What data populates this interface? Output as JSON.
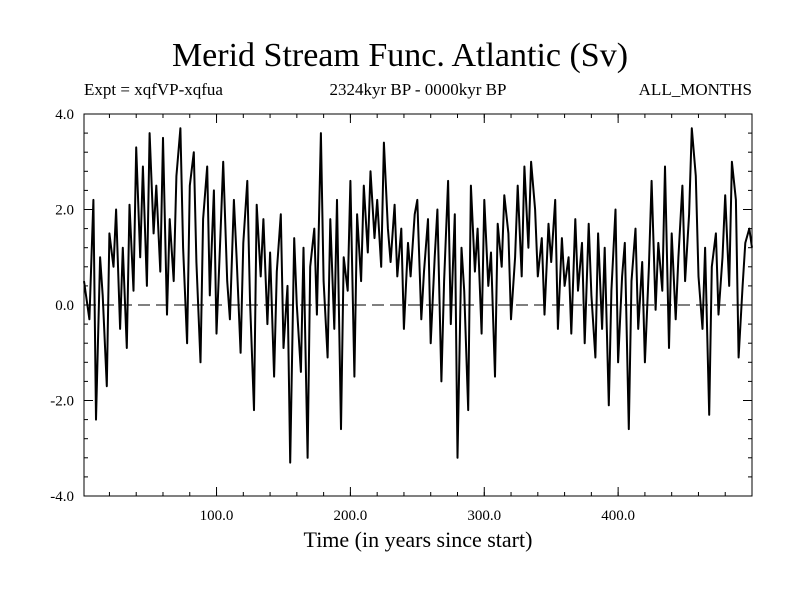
{
  "chart_data": {
    "type": "line",
    "title": "Merid Stream Func. Atlantic (Sv)",
    "subtitle_left": "Expt = xqfVP-xqfua",
    "subtitle_center": "2324kyr BP - 0000kyr BP",
    "subtitle_right": "ALL_MONTHS",
    "xlabel": "Time (in years since start)",
    "ylabel": "",
    "xlim": [
      1,
      500
    ],
    "ylim": [
      -4.0,
      4.0
    ],
    "x_ticks": [
      100.0,
      200.0,
      300.0,
      400.0
    ],
    "x_tick_labels": [
      "100.0",
      "200.0",
      "300.0",
      "400.0"
    ],
    "y_ticks": [
      -4.0,
      -2.0,
      0.0,
      2.0,
      4.0
    ],
    "y_tick_labels": [
      "-4.0",
      "-2.0",
      "0.0",
      "2.0",
      "4.0"
    ],
    "reference_line": 0.0,
    "series": [
      {
        "name": "Expt = xqfVP-xqfua",
        "x": [
          1,
          5,
          8,
          10,
          13,
          15,
          18,
          20,
          23,
          25,
          28,
          30,
          33,
          35,
          38,
          40,
          43,
          45,
          48,
          50,
          53,
          55,
          58,
          60,
          63,
          65,
          68,
          70,
          73,
          75,
          78,
          80,
          83,
          85,
          88,
          90,
          93,
          95,
          98,
          100,
          103,
          105,
          108,
          110,
          113,
          115,
          118,
          120,
          123,
          125,
          128,
          130,
          133,
          135,
          138,
          140,
          143,
          145,
          148,
          150,
          153,
          155,
          158,
          160,
          163,
          165,
          168,
          170,
          173,
          175,
          178,
          180,
          183,
          185,
          188,
          190,
          193,
          195,
          198,
          200,
          203,
          205,
          208,
          210,
          213,
          215,
          218,
          220,
          223,
          225,
          228,
          230,
          233,
          235,
          238,
          240,
          243,
          245,
          248,
          250,
          253,
          255,
          258,
          260,
          263,
          265,
          268,
          270,
          273,
          275,
          278,
          280,
          283,
          285,
          288,
          290,
          293,
          295,
          298,
          300,
          303,
          305,
          308,
          310,
          313,
          315,
          318,
          320,
          323,
          325,
          328,
          330,
          333,
          335,
          338,
          340,
          343,
          345,
          348,
          350,
          353,
          355,
          358,
          360,
          363,
          365,
          368,
          370,
          373,
          375,
          378,
          380,
          383,
          385,
          388,
          390,
          393,
          395,
          398,
          400,
          403,
          405,
          408,
          410,
          413,
          415,
          418,
          420,
          423,
          425,
          428,
          430,
          433,
          435,
          438,
          440,
          443,
          445,
          448,
          450,
          453,
          455,
          458,
          460,
          463,
          465,
          468,
          470,
          473,
          475,
          478,
          480,
          483,
          485,
          488,
          490,
          493,
          495,
          498,
          500
        ],
        "values": [
          0.5,
          -0.3,
          2.2,
          -2.4,
          1.0,
          0.2,
          -1.7,
          1.5,
          0.8,
          2.0,
          -0.5,
          1.2,
          -0.9,
          2.1,
          0.3,
          3.3,
          1.0,
          2.9,
          0.4,
          3.6,
          1.5,
          2.5,
          0.7,
          3.5,
          -0.2,
          1.8,
          0.5,
          2.7,
          3.7,
          1.2,
          -0.8,
          2.5,
          3.2,
          0.9,
          -1.2,
          1.8,
          2.9,
          0.2,
          2.4,
          -0.6,
          1.5,
          3.0,
          0.5,
          -0.3,
          2.2,
          1.0,
          -1.0,
          1.3,
          2.6,
          0.1,
          -2.2,
          2.1,
          0.6,
          1.8,
          -0.4,
          1.1,
          -1.5,
          0.7,
          1.9,
          -0.9,
          0.4,
          -3.3,
          1.4,
          0.0,
          -1.4,
          1.2,
          -3.2,
          0.8,
          1.6,
          -0.2,
          3.6,
          0.5,
          -1.1,
          1.8,
          -0.5,
          2.2,
          -2.6,
          1.0,
          0.3,
          2.6,
          -1.5,
          1.9,
          0.5,
          2.5,
          1.1,
          2.8,
          1.4,
          2.2,
          0.8,
          3.4,
          1.6,
          0.9,
          2.1,
          0.6,
          1.6,
          -0.5,
          1.3,
          0.6,
          1.9,
          2.2,
          -0.3,
          0.7,
          1.8,
          -0.8,
          1.0,
          2.0,
          -1.6,
          0.5,
          2.6,
          -0.4,
          1.9,
          -3.2,
          1.2,
          0.3,
          -2.2,
          2.5,
          0.7,
          1.6,
          -0.6,
          2.2,
          0.4,
          1.1,
          -1.5,
          1.7,
          0.8,
          2.3,
          1.5,
          -0.3,
          1.0,
          2.5,
          0.6,
          2.9,
          1.2,
          3.0,
          2.0,
          0.6,
          1.4,
          -0.2,
          1.7,
          0.9,
          2.2,
          -0.5,
          1.4,
          0.4,
          1.0,
          -0.6,
          1.8,
          0.3,
          1.3,
          -0.8,
          1.7,
          0.2,
          -1.1,
          1.5,
          -0.5,
          1.2,
          -2.1,
          0.3,
          2.0,
          -1.2,
          0.6,
          1.3,
          -2.6,
          0.5,
          1.6,
          -0.5,
          0.9,
          -1.2,
          0.8,
          2.6,
          -0.1,
          1.3,
          0.3,
          2.9,
          -0.9,
          1.5,
          -0.3,
          1.0,
          2.5,
          0.5,
          1.9,
          3.7,
          2.7,
          0.6,
          -0.5,
          1.2,
          -2.3,
          0.8,
          1.5,
          -0.2,
          1.0,
          2.3,
          0.4,
          3.0,
          2.2,
          -1.1,
          0.4,
          1.3,
          1.6,
          1.2
        ]
      }
    ]
  }
}
